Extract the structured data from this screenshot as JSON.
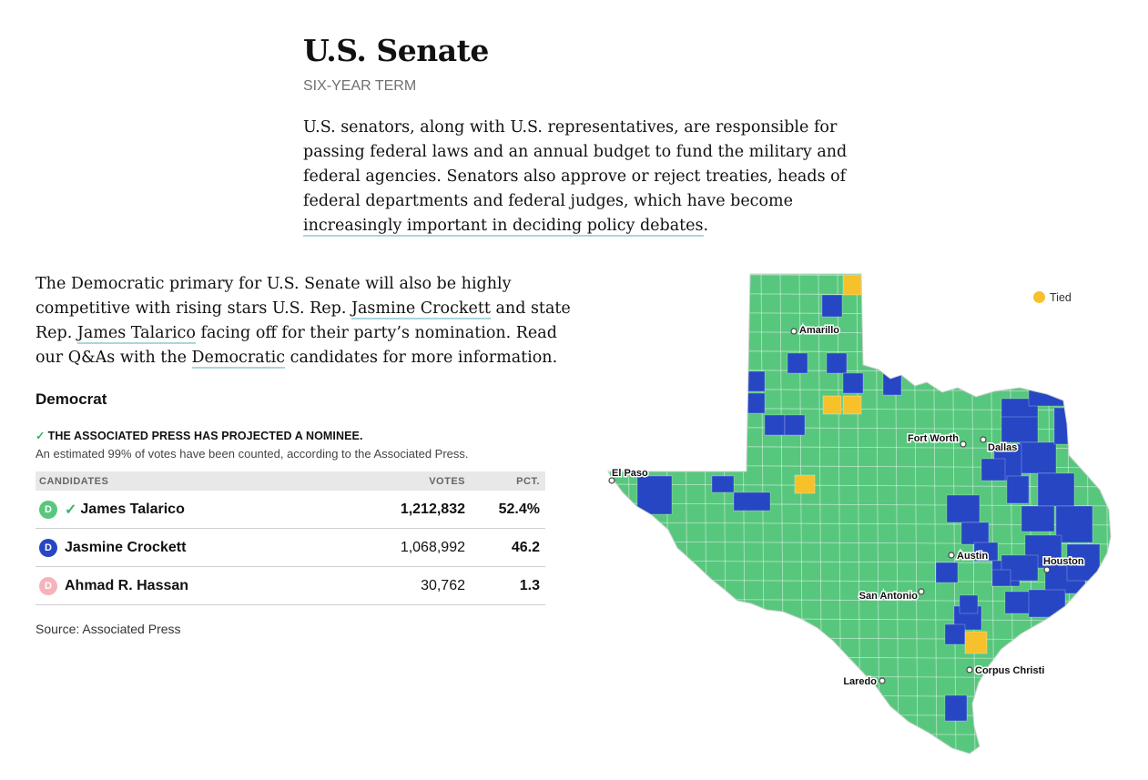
{
  "header": {
    "title": "U.S. Senate",
    "term": "SIX-YEAR TERM"
  },
  "intro": {
    "text_before": "U.S. senators, along with U.S. representatives, are responsible for passing federal laws and an annual budget to fund the military and federal agencies. Senators also approve or reject treaties, heads of federal departments and federal judges, which have become ",
    "link_text": "increasingly important in deciding policy debates",
    "text_after": "."
  },
  "paragraph2": {
    "t1": "The Democratic primary for U.S. Senate will also be highly competitive with rising stars U.S. Rep. ",
    "link1": "Jasmine Crockett",
    "t2": " and state Rep. ",
    "link2": "James Talarico",
    "t3": " facing off for their party’s nomination. Read our Q&As with the ",
    "link3": "Democratic",
    "t4": " candidates for more information."
  },
  "results": {
    "party": "Democrat",
    "projected": "THE ASSOCIATED PRESS HAS PROJECTED A NOMINEE.",
    "counted": "An estimated 99% of votes have been counted, according to the Associated Press.",
    "columns": [
      "CANDIDATES",
      "VOTES",
      "PCT."
    ],
    "candidates": [
      {
        "badge": "D",
        "name": "James Talarico",
        "votes": "1,212,832",
        "pct": "52.4%",
        "winner": true,
        "color": "#58c77e"
      },
      {
        "badge": "D",
        "name": "Jasmine Crockett",
        "votes": "1,068,992",
        "pct": "46.2",
        "winner": false,
        "color": "#2746c4"
      },
      {
        "badge": "D",
        "name": "Ahmad R. Hassan",
        "votes": "30,762",
        "pct": "1.3",
        "winner": false,
        "color": "#f5b3bb"
      }
    ],
    "source": "Source: Associated Press"
  },
  "map": {
    "legend": {
      "label": "Tied",
      "color": "#f7c12b"
    },
    "colors": {
      "talarico": "#58c77e",
      "crockett": "#2746c4",
      "tied": "#f7c12b"
    },
    "cities": [
      "Amarillo",
      "El Paso",
      "Fort Worth",
      "Dallas",
      "Austin",
      "Houston",
      "San Antonio",
      "Corpus Christi",
      "Laredo"
    ]
  }
}
